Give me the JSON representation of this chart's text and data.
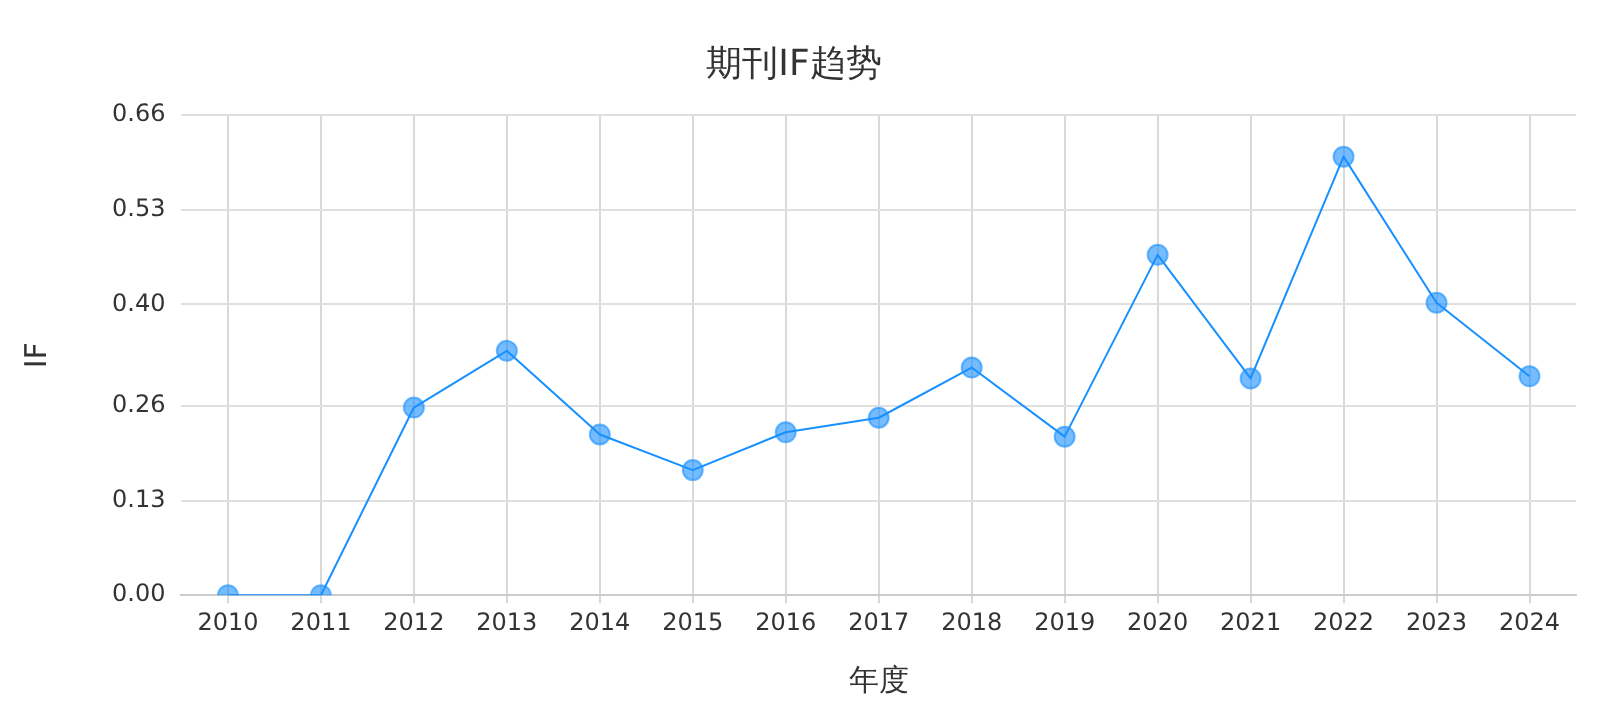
{
  "chart_data": {
    "type": "line",
    "title": "期刊IF趋势",
    "xlabel": "年度",
    "ylabel": "IF",
    "categories": [
      "2010",
      "2011",
      "2012",
      "2013",
      "2014",
      "2015",
      "2016",
      "2017",
      "2018",
      "2019",
      "2020",
      "2021",
      "2022",
      "2023",
      "2024"
    ],
    "series": [
      {
        "color": "#1890ff",
        "values": [
          0,
          0,
          0.258,
          0.336,
          0.221,
          0.172,
          0.224,
          0.244,
          0.313,
          0.218,
          0.468,
          0.298,
          0.603,
          0.402,
          0.301
        ]
      }
    ],
    "ylim": [
      0,
      0.66
    ],
    "yticks": [
      {
        "value": 0,
        "label": "0.00"
      },
      {
        "value": 0.13,
        "label": "0.13"
      },
      {
        "value": 0.26,
        "label": "0.26"
      },
      {
        "value": 0.4,
        "label": "0.40"
      },
      {
        "value": 0.53,
        "label": "0.53"
      },
      {
        "value": 0.66,
        "label": "0.66"
      }
    ],
    "grid": true,
    "legend": false,
    "marker": "circle",
    "line_style": "solid"
  }
}
